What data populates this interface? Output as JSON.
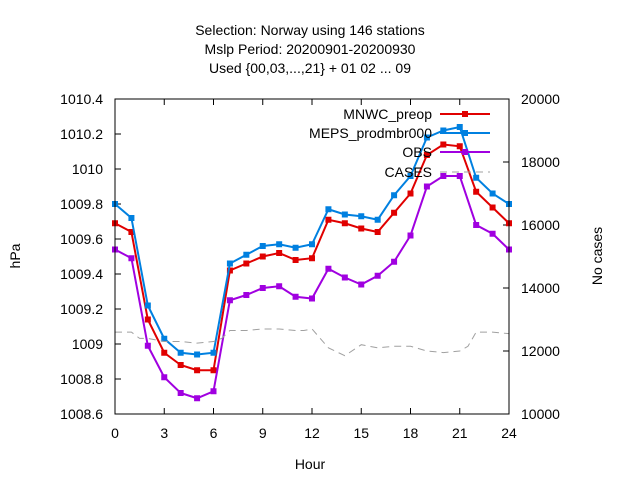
{
  "chart_data": {
    "type": "line",
    "title_lines": [
      "Selection: Norway using   146 stations",
      "Mslp   Period: 20200901-20200930",
      "Used {00,03,...,21} + 01 02 ... 09"
    ],
    "xlabel": "Hour",
    "ylabel": "hPa",
    "y2label": "No cases",
    "xlim": [
      0,
      24
    ],
    "ylim": [
      1008.6,
      1010.4
    ],
    "y2lim": [
      10000,
      20000
    ],
    "xticks": [
      "0",
      "3",
      "6",
      "9",
      "12",
      "15",
      "18",
      "21",
      "24"
    ],
    "yticks": [
      "1008.6",
      "1008.8",
      "1009",
      "1009.2",
      "1009.4",
      "1009.6",
      "1009.8",
      "1010",
      "1010.2",
      "1010.4"
    ],
    "y2ticks": [
      "10000",
      "12000",
      "14000",
      "16000",
      "18000",
      "20000"
    ],
    "grid": false,
    "legend_position": "top-right",
    "x": [
      0,
      1,
      2,
      3,
      4,
      5,
      6,
      7,
      8,
      9,
      10,
      11,
      12,
      13,
      14,
      15,
      16,
      17,
      18,
      19,
      20,
      21,
      22,
      23,
      24
    ],
    "series": [
      {
        "name": "MNWC_preop",
        "color": "#e00000",
        "axis": "y1",
        "values": [
          1009.69,
          1009.64,
          1009.14,
          1008.95,
          1008.88,
          1008.85,
          1008.85,
          1009.42,
          1009.46,
          1009.5,
          1009.52,
          1009.48,
          1009.49,
          1009.71,
          1009.69,
          1009.66,
          1009.64,
          1009.75,
          1009.86,
          1010.08,
          1010.14,
          1010.13,
          1009.87,
          1009.78,
          1009.69
        ]
      },
      {
        "name": "MEPS_prodmbr000",
        "color": "#0080e0",
        "axis": "y1",
        "values": [
          1009.8,
          1009.72,
          1009.22,
          1009.03,
          1008.95,
          1008.94,
          1008.95,
          1009.46,
          1009.51,
          1009.56,
          1009.57,
          1009.55,
          1009.57,
          1009.77,
          1009.74,
          1009.73,
          1009.71,
          1009.85,
          1009.96,
          1010.18,
          1010.22,
          1010.24,
          1009.95,
          1009.86,
          1009.8
        ]
      },
      {
        "name": "OBS",
        "color": "#a000e0",
        "axis": "y1",
        "values": [
          1009.54,
          1009.49,
          1008.99,
          1008.81,
          1008.72,
          1008.69,
          1008.73,
          1009.25,
          1009.28,
          1009.32,
          1009.33,
          1009.27,
          1009.26,
          1009.43,
          1009.38,
          1009.34,
          1009.39,
          1009.47,
          1009.62,
          1009.9,
          1009.96,
          1009.96,
          1009.68,
          1009.63,
          1009.54
        ]
      },
      {
        "name": "CASES",
        "color": "#a0a0a0",
        "axis": "y2",
        "dashed": true,
        "x": [
          0,
          1,
          1.5,
          2,
          3,
          4,
          5,
          6,
          6.5,
          7,
          8,
          9,
          10,
          11,
          11.5,
          12,
          12.5,
          13,
          14,
          15,
          16,
          17,
          18,
          19,
          20,
          21,
          21.5,
          22,
          23,
          24
        ],
        "values": [
          12600,
          12600,
          12400,
          12400,
          12300,
          12300,
          12250,
          12300,
          12400,
          12650,
          12650,
          12700,
          12700,
          12650,
          12650,
          12700,
          12400,
          12100,
          11850,
          12200,
          12100,
          12150,
          12150,
          12000,
          11950,
          12000,
          12150,
          12600,
          12600,
          12550
        ]
      }
    ]
  }
}
